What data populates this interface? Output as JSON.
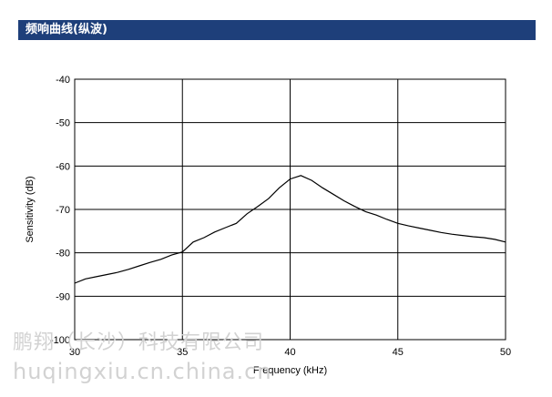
{
  "header": {
    "title": "频响曲线(纵波)",
    "bg_color": "#1e3f7a",
    "text_color": "#ffffff"
  },
  "watermark": {
    "line1": "鹏翔（长沙）科技有限公司",
    "line2": "huqingxiu.cn.china.cn",
    "color": "#d2d2d2"
  },
  "chart_data": {
    "type": "line",
    "title": "",
    "xlabel": "Frequency (kHz)",
    "ylabel": "Sensitivity (dB)",
    "xlim": [
      30,
      50
    ],
    "ylim": [
      -100,
      -40
    ],
    "xticks": [
      30,
      35,
      40,
      45,
      50
    ],
    "yticks": [
      -40,
      -50,
      -60,
      -70,
      -80,
      -90,
      -100
    ],
    "grid": true,
    "line_color": "#000000",
    "series": [
      {
        "values": [
          [
            30.0,
            -87.0
          ],
          [
            30.5,
            -86.0
          ],
          [
            31.0,
            -85.5
          ],
          [
            31.5,
            -85.0
          ],
          [
            32.0,
            -84.5
          ],
          [
            32.5,
            -83.8
          ],
          [
            33.0,
            -83.0
          ],
          [
            33.5,
            -82.2
          ],
          [
            34.0,
            -81.5
          ],
          [
            34.5,
            -80.5
          ],
          [
            35.0,
            -79.8
          ],
          [
            35.5,
            -77.5
          ],
          [
            36.0,
            -76.5
          ],
          [
            36.5,
            -75.2
          ],
          [
            37.0,
            -74.2
          ],
          [
            37.5,
            -73.2
          ],
          [
            38.0,
            -71.0
          ],
          [
            38.5,
            -69.3
          ],
          [
            39.0,
            -67.5
          ],
          [
            39.5,
            -65.0
          ],
          [
            40.0,
            -63.0
          ],
          [
            40.5,
            -62.2
          ],
          [
            41.0,
            -63.3
          ],
          [
            41.5,
            -65.0
          ],
          [
            42.0,
            -66.5
          ],
          [
            42.5,
            -68.0
          ],
          [
            43.0,
            -69.3
          ],
          [
            43.5,
            -70.5
          ],
          [
            44.0,
            -71.3
          ],
          [
            44.5,
            -72.3
          ],
          [
            45.0,
            -73.2
          ],
          [
            45.5,
            -73.8
          ],
          [
            46.0,
            -74.3
          ],
          [
            46.5,
            -74.8
          ],
          [
            47.0,
            -75.3
          ],
          [
            47.5,
            -75.7
          ],
          [
            48.0,
            -76.0
          ],
          [
            48.5,
            -76.3
          ],
          [
            49.0,
            -76.5
          ],
          [
            49.5,
            -76.9
          ],
          [
            50.0,
            -77.5
          ]
        ]
      }
    ]
  }
}
